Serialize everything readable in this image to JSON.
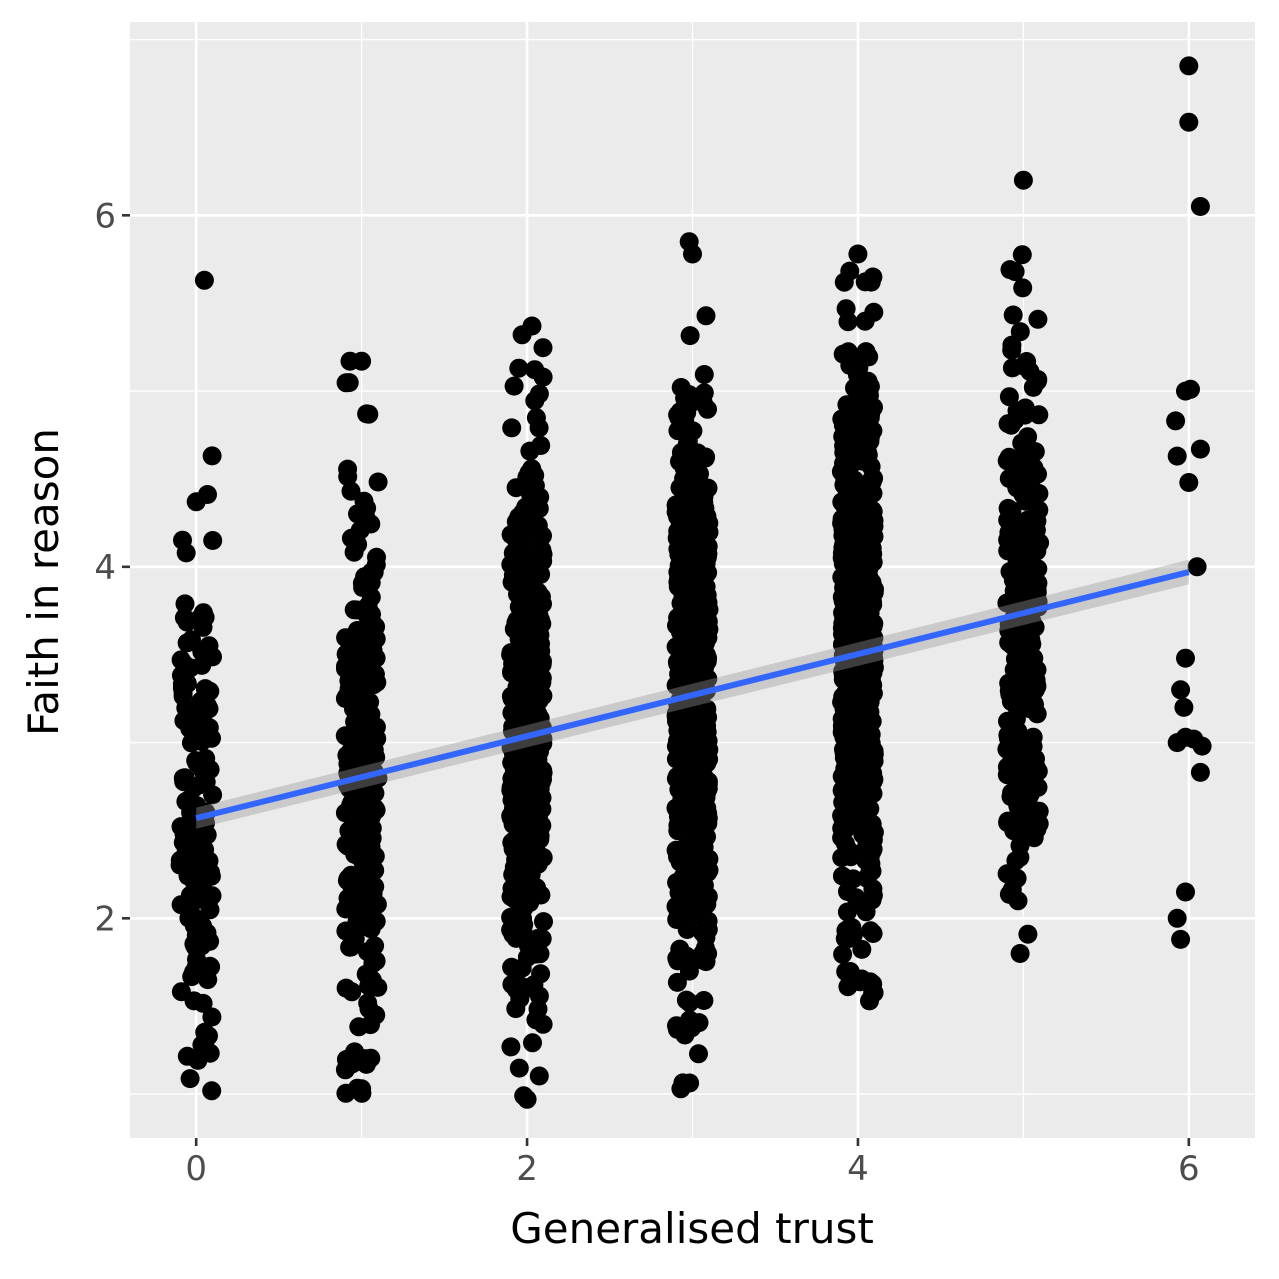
{
  "chart_data": {
    "type": "scatter",
    "title": "",
    "xlabel": "Generalised trust",
    "ylabel": "Faith in reason",
    "xlim": [
      -0.4,
      6.4
    ],
    "ylim": [
      0.75,
      7.1
    ],
    "xticks": [
      0,
      2,
      4,
      6
    ],
    "yticks": [
      2,
      4,
      6
    ],
    "x_tick_labels": [
      "0",
      "2",
      "4",
      "6"
    ],
    "y_tick_labels": [
      "2",
      "4",
      "6"
    ],
    "grid": true,
    "legend": "none",
    "colors": {
      "panel": "#ebebeb",
      "grid": "#ffffff",
      "points": "#000000",
      "fit_line": "#3366ff",
      "confidence_band": "#999999"
    },
    "jitter": "horizontal, approx ±0.1 around each integer x",
    "fit": {
      "method": "linear",
      "x": [
        0,
        6
      ],
      "y": [
        2.57,
        3.97
      ],
      "ci_halfwidth": [
        0.06,
        0.07
      ]
    },
    "groups": [
      {
        "x": 0,
        "approx_n": 150,
        "y_range": [
          1.0,
          5.63
        ]
      },
      {
        "x": 1,
        "approx_n": 240,
        "y_range": [
          1.0,
          5.18
        ]
      },
      {
        "x": 2,
        "approx_n": 450,
        "y_range": [
          0.97,
          5.37
        ]
      },
      {
        "x": 3,
        "approx_n": 600,
        "y_range": [
          1.0,
          5.85
        ]
      },
      {
        "x": 4,
        "approx_n": 720,
        "y_range": [
          1.53,
          5.78
        ]
      },
      {
        "x": 5,
        "approx_n": 280,
        "y_range": [
          1.8,
          6.2
        ]
      },
      {
        "x": 6,
        "approx_n": 24,
        "y_range": [
          1.88,
          6.85
        ]
      }
    ],
    "labeled_points": [
      {
        "x": 0.05,
        "y": 5.63
      },
      {
        "x": 0.0,
        "y": 4.37
      },
      {
        "x": 0.1,
        "y": 4.15
      },
      {
        "x": 0.93,
        "y": 5.17
      },
      {
        "x": 1.0,
        "y": 5.17
      },
      {
        "x": 1.03,
        "y": 4.87
      },
      {
        "x": 1.0,
        "y": 1.03
      },
      {
        "x": 0.92,
        "y": 1.2
      },
      {
        "x": 2.03,
        "y": 5.37
      },
      {
        "x": 1.97,
        "y": 5.32
      },
      {
        "x": 1.95,
        "y": 5.13
      },
      {
        "x": 1.98,
        "y": 0.99
      },
      {
        "x": 2.0,
        "y": 0.97
      },
      {
        "x": 2.98,
        "y": 5.85
      },
      {
        "x": 2.98,
        "y": 4.98
      },
      {
        "x": 2.93,
        "y": 1.03
      },
      {
        "x": 3.0,
        "y": 5.78
      },
      {
        "x": 4.0,
        "y": 5.78
      },
      {
        "x": 4.08,
        "y": 5.62
      },
      {
        "x": 4.07,
        "y": 1.53
      },
      {
        "x": 5.0,
        "y": 6.2
      },
      {
        "x": 4.95,
        "y": 5.68
      },
      {
        "x": 4.98,
        "y": 1.8
      },
      {
        "x": 6.0,
        "y": 6.85
      },
      {
        "x": 6.0,
        "y": 6.53
      },
      {
        "x": 6.07,
        "y": 6.05
      },
      {
        "x": 5.98,
        "y": 5.0
      },
      {
        "x": 6.01,
        "y": 5.01
      },
      {
        "x": 5.92,
        "y": 4.83
      },
      {
        "x": 6.07,
        "y": 4.67
      },
      {
        "x": 5.93,
        "y": 4.63
      },
      {
        "x": 6.0,
        "y": 4.48
      },
      {
        "x": 6.05,
        "y": 4.0
      },
      {
        "x": 5.98,
        "y": 3.48
      },
      {
        "x": 5.95,
        "y": 3.3
      },
      {
        "x": 5.97,
        "y": 3.2
      },
      {
        "x": 5.93,
        "y": 3.0
      },
      {
        "x": 5.98,
        "y": 3.03
      },
      {
        "x": 6.03,
        "y": 3.02
      },
      {
        "x": 6.08,
        "y": 2.98
      },
      {
        "x": 6.07,
        "y": 2.83
      },
      {
        "x": 5.98,
        "y": 2.15
      },
      {
        "x": 5.93,
        "y": 2.0
      },
      {
        "x": 5.95,
        "y": 1.88
      }
    ]
  }
}
